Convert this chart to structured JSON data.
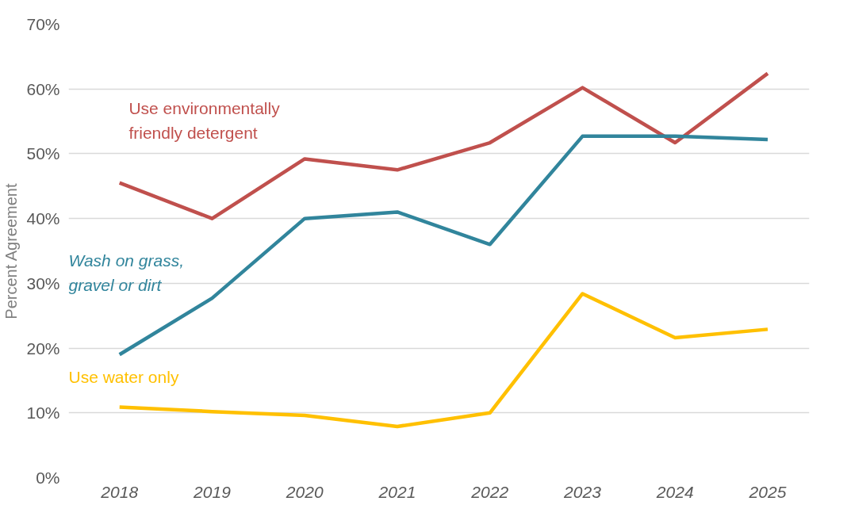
{
  "chart_data": {
    "type": "line",
    "ylabel": "Percent Agreement",
    "categories": [
      "2018",
      "2019",
      "2020",
      "2021",
      "2022",
      "2023",
      "2024",
      "2025"
    ],
    "series": [
      {
        "name": "Use environmentally friendly detergent",
        "color": "#c0504d",
        "values": [
          45.5,
          40,
          49.2,
          47.5,
          51.7,
          60.2,
          51.7,
          62.4
        ]
      },
      {
        "name": "Wash on grass, gravel or dirt",
        "color": "#31859c",
        "values": [
          19,
          27.7,
          40,
          41,
          36,
          52.7,
          52.7,
          52.2
        ]
      },
      {
        "name": "Use water only",
        "color": "#ffc000",
        "values": [
          10.9,
          10.2,
          9.6,
          7.9,
          10,
          28.4,
          21.6,
          22.9
        ]
      }
    ],
    "ylim": [
      0,
      70
    ],
    "yticks": [
      {
        "value": 0,
        "label": "0%"
      },
      {
        "value": 10,
        "label": "10%"
      },
      {
        "value": 20,
        "label": "20%"
      },
      {
        "value": 30,
        "label": "30%"
      },
      {
        "value": 40,
        "label": "40%"
      },
      {
        "value": 50,
        "label": "50%"
      },
      {
        "value": 60,
        "label": "60%"
      },
      {
        "value": 70,
        "label": "70%"
      }
    ],
    "grid": "y",
    "marker": "none",
    "line_style": "solid"
  }
}
